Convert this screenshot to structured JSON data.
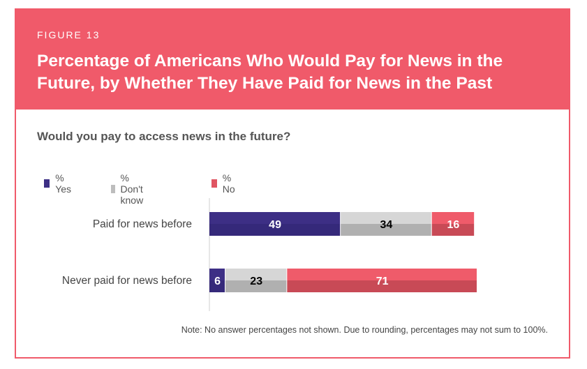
{
  "header": {
    "figure_label": "FIGURE 13",
    "title": "Percentage of Americans Who Would Pay for News in the Future, by Whether They Have Paid for News in the Past"
  },
  "question": "Would you pay to access news in the future?",
  "legend": [
    {
      "label": "% Yes",
      "color": "#3d2f85"
    },
    {
      "label": "% Don't know",
      "color": "#bdbdbd"
    },
    {
      "label": "% No",
      "color": "#e05562"
    }
  ],
  "note": "Note: No answer percentages not shown. Due to rounding, percentages may not sum to 100%.",
  "chart_data": {
    "type": "bar",
    "orientation": "horizontal",
    "stacked": true,
    "categories": [
      "Paid for news before",
      "Never paid for news before"
    ],
    "series": [
      {
        "name": "% Yes",
        "values": [
          49,
          6
        ],
        "color": "#3d2f85",
        "shade": "#35297a",
        "label_color": "#ffffff"
      },
      {
        "name": "% Don't know",
        "values": [
          34,
          23
        ],
        "color": "#d6d6d6",
        "shade": "#b0b0b0",
        "label_color": "#000000"
      },
      {
        "name": "% No",
        "values": [
          16,
          71
        ],
        "color": "#ef5b6a",
        "shade": "#c84a56",
        "label_color": "#ffffff"
      }
    ],
    "xlim": [
      0,
      100
    ],
    "legend_position": "top-left"
  }
}
